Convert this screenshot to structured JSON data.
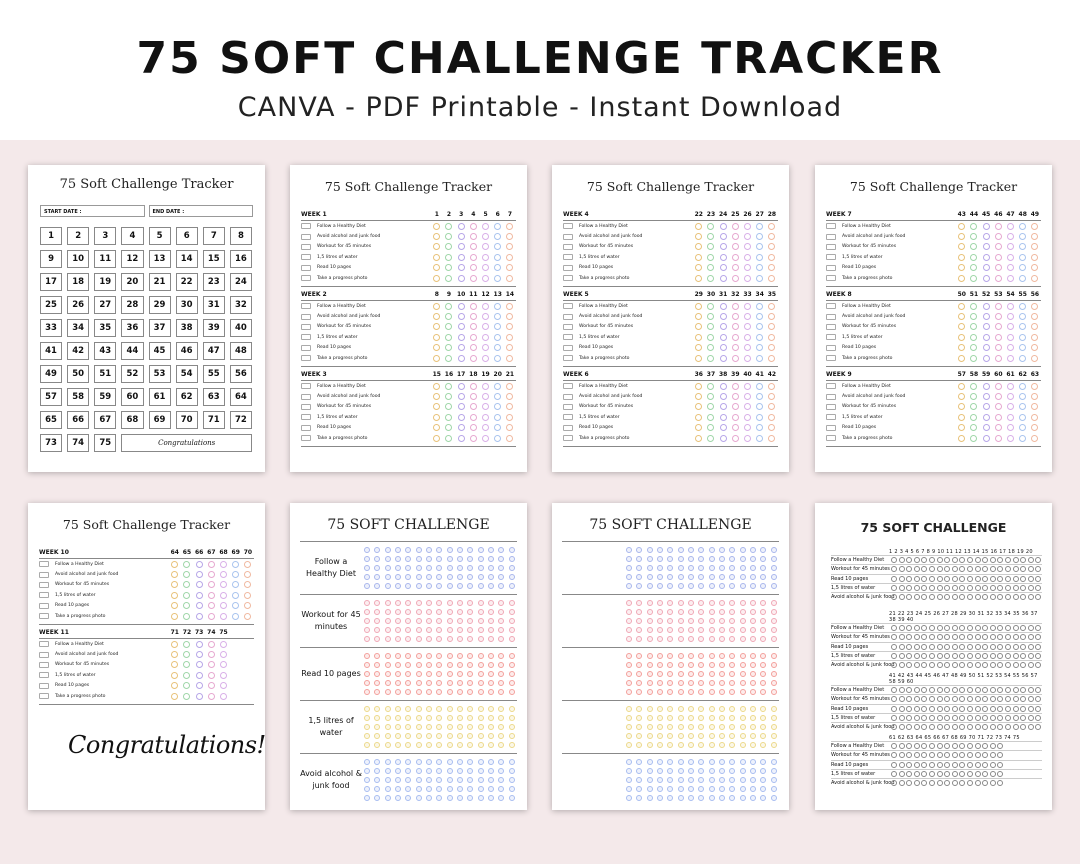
{
  "banner": {
    "title": "75 SOFT CHALLENGE TRACKER",
    "subtitle": "CANVA - PDF Printable - Instant Download"
  },
  "sheet1": {
    "title": "75 Soft Challenge Tracker",
    "start_label": "START DATE :",
    "end_label": "END DATE :",
    "congrats": "Congratulations"
  },
  "tracker_title": "75 Soft Challenge Tracker",
  "tasks": [
    "Follow a Healthy Diet",
    "Avoid alcohol and junk food",
    "Workout for 45 minutes",
    "1,5 litres of water",
    "Read 10 pages",
    "Take a progress photo"
  ],
  "weeks": [
    {
      "label": "WEEK 1",
      "days": [
        "1",
        "2",
        "3",
        "4",
        "5",
        "6",
        "7"
      ]
    },
    {
      "label": "WEEK 2",
      "days": [
        "8",
        "9",
        "10",
        "11",
        "12",
        "13",
        "14"
      ]
    },
    {
      "label": "WEEK 3",
      "days": [
        "15",
        "16",
        "17",
        "18",
        "19",
        "20",
        "21"
      ]
    },
    {
      "label": "WEEK 4",
      "days": [
        "22",
        "23",
        "24",
        "25",
        "26",
        "27",
        "28"
      ]
    },
    {
      "label": "WEEK 5",
      "days": [
        "29",
        "30",
        "31",
        "32",
        "33",
        "34",
        "35"
      ]
    },
    {
      "label": "WEEK 6",
      "days": [
        "36",
        "37",
        "38",
        "39",
        "40",
        "41",
        "42"
      ]
    },
    {
      "label": "WEEK 7",
      "days": [
        "43",
        "44",
        "45",
        "46",
        "47",
        "48",
        "49"
      ]
    },
    {
      "label": "WEEK 8",
      "days": [
        "50",
        "51",
        "52",
        "53",
        "54",
        "55",
        "56"
      ]
    },
    {
      "label": "WEEK 9",
      "days": [
        "57",
        "58",
        "59",
        "60",
        "61",
        "62",
        "63"
      ]
    },
    {
      "label": "WEEK 10",
      "days": [
        "64",
        "65",
        "66",
        "67",
        "68",
        "69",
        "70"
      ]
    },
    {
      "label": "WEEK 11",
      "days": [
        "71",
        "72",
        "73",
        "74",
        "75"
      ]
    }
  ],
  "dot_colors": [
    "#e8c27a",
    "#9fd6a8",
    "#b7a6e8",
    "#e6a8d0",
    "#d9b0e8",
    "#a9c4ee",
    "#f0b9a0"
  ],
  "final_congrats": "Congratulations!",
  "challenge_title": "75 SOFT CHALLENGE",
  "challenge_sections": [
    {
      "label": "Follow a Healthy Diet",
      "color": "#a9b7ec"
    },
    {
      "label": "Workout for 45 minutes",
      "color": "#f0a8b6"
    },
    {
      "label": "Read 10 pages",
      "color": "#f3a09c"
    },
    {
      "label": "1,5 litres of water",
      "color": "#ecd98a"
    },
    {
      "label": "Avoid alcohol & junk food",
      "color": "#a8bdf0"
    }
  ],
  "last_sheet": {
    "title": "75 SOFT CHALLENGE",
    "ranges": [
      "1 2 3 4 5 6 7 8 9 10 11 12 13 14 15 16 17 18 19 20",
      "21 22 23 24 25 26 27 28 29 30 31 32 33 34 35 36 37 38 39 40",
      "41 42 43 44 45 46 47 48 49 50 51 52 53 54 55 56 57 58 59 60",
      "61 62 63 64 65 66 67 68 69 70 71 72 73 74 75"
    ],
    "tasks": [
      "Follow a Healthy Diet",
      "Workout for 45 minutes",
      "Read 10 pages",
      "1,5 litres of water",
      "Avoid alcohol & junk food"
    ]
  }
}
